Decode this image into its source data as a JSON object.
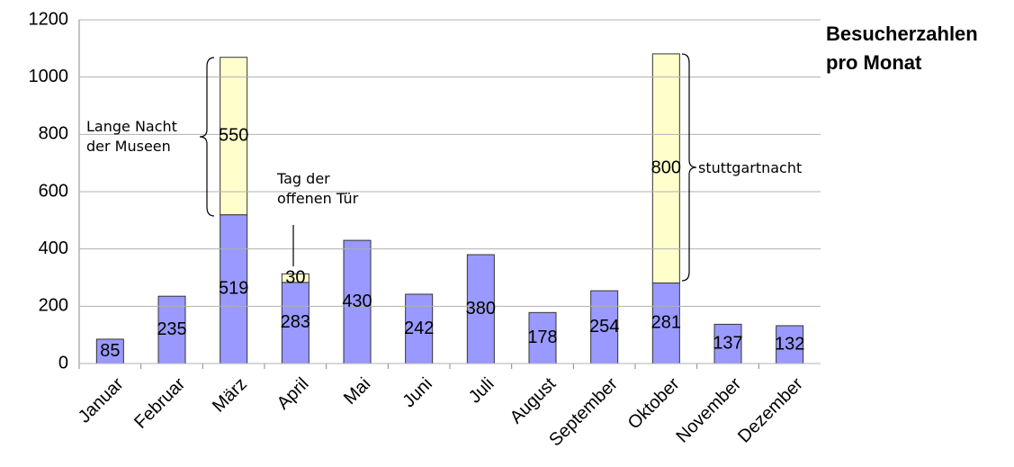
{
  "chart_data": {
    "type": "bar",
    "stacked": true,
    "title": "Besucherzahlen pro Monat",
    "categories": [
      "Januar",
      "Februar",
      "März",
      "April",
      "Mai",
      "Juni",
      "Juli",
      "August",
      "September",
      "Oktober",
      "November",
      "Dezember"
    ],
    "series": [
      {
        "color": "#9999ff",
        "values": [
          85,
          235,
          519,
          283,
          430,
          242,
          380,
          178,
          254,
          281,
          137,
          132
        ]
      },
      {
        "color": "#ffffcc",
        "values": [
          null,
          null,
          550,
          30,
          null,
          null,
          null,
          null,
          null,
          800,
          null,
          null
        ]
      }
    ],
    "ylim": [
      0,
      1200
    ],
    "yticks": [
      0,
      200,
      400,
      600,
      800,
      1000,
      1200
    ],
    "grid": true,
    "annotations": [
      "Lange Nacht der Museen",
      "Tag der offenen Tür",
      "stuttgartnacht"
    ]
  }
}
